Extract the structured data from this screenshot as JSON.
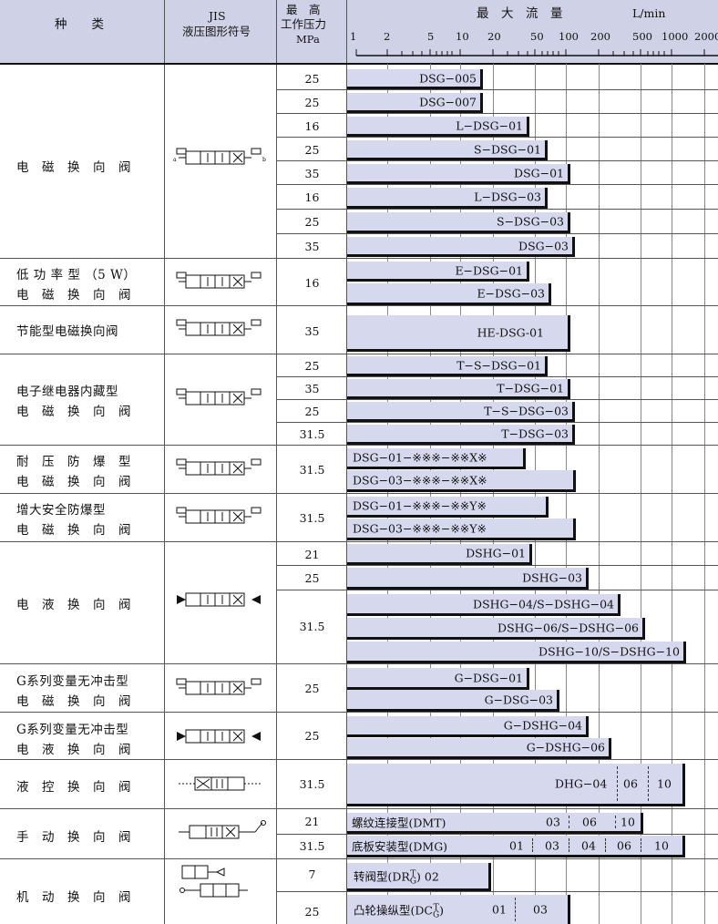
{
  "header": {
    "col_type": "种　　类",
    "col_jis_1": "JIS",
    "col_jis_2": "液压图形符号",
    "col_press_1": "最　高",
    "col_press_2": "工作压力",
    "col_press_3": "MPa",
    "col_flow": "最　大　流　量",
    "flow_unit": "L/min",
    "scale_ticks": [
      "1",
      "2",
      "5",
      "10",
      "20",
      "50",
      "100",
      "200",
      "500",
      "1000",
      "2000"
    ]
  },
  "categories": [
    {
      "name": "电　磁　换　向　阀"
    },
    {
      "name_1": "低 功 率 型 （5 W）",
      "name_2": "电　磁　换　向　阀"
    },
    {
      "name": "节能型电磁换向阀"
    },
    {
      "name_1": "电子继电器内藏型",
      "name_2": "电　磁　换　向　阀"
    },
    {
      "name_1": "耐　压　防　爆　型",
      "name_2": "电　磁　换　向　阀"
    },
    {
      "name_1": "增大安全防爆型",
      "name_2": "电　磁　换　向　阀"
    },
    {
      "name": "电　液　换　向　阀"
    },
    {
      "name_1": "G系列变量无冲击型",
      "name_2": "电　磁　换　向　阀"
    },
    {
      "name_1": "G系列变量无冲击型",
      "name_2": "电　液　换　向　阀"
    },
    {
      "name": "液　控　换　向　阀"
    },
    {
      "name": "手　动　换　向　阀"
    },
    {
      "name": "机　动　换　向　阀"
    }
  ],
  "rows": [
    {
      "p": "25",
      "label": "DSG−005"
    },
    {
      "p": "25",
      "label": "DSG−007"
    },
    {
      "p": "16",
      "label": "L−DSG−01"
    },
    {
      "p": "25",
      "label": "S−DSG−01"
    },
    {
      "p": "35",
      "label": "DSG−01"
    },
    {
      "p": "16",
      "label": "L−DSG−03"
    },
    {
      "p": "25",
      "label": "S−DSG−03"
    },
    {
      "p": "35",
      "label": "DSG−03"
    },
    {
      "p": "16",
      "label": "E−DSG−01"
    },
    {
      "p": "",
      "label": "E−DSG−03"
    },
    {
      "p": "35",
      "label": "HE-DSG-01"
    },
    {
      "p": "25",
      "label": "T−S−DSG−01"
    },
    {
      "p": "35",
      "label": "T−DSG−01"
    },
    {
      "p": "25",
      "label": "T−S−DSG−03"
    },
    {
      "p": "31.5",
      "label": "T−DSG−03"
    },
    {
      "p": "31.5",
      "label": "DSG−01−※※※−※※X※"
    },
    {
      "p": "",
      "label": "DSG−03−※※※−※※X※"
    },
    {
      "p": "31.5",
      "label": "DSG−01−※※※−※※Y※"
    },
    {
      "p": "",
      "label": "DSG−03−※※※−※※Y※"
    },
    {
      "p": "21",
      "label": "DSHG−01"
    },
    {
      "p": "25",
      "label": "DSHG−03"
    },
    {
      "p": "31.5",
      "label": "DSHG−04/S−DSHG−04"
    },
    {
      "p": "",
      "label": "DSHG−06/S−DSHG−06"
    },
    {
      "p": "",
      "label": "DSHG−10/S−DSHG−10"
    },
    {
      "p": "25",
      "label": "G−DSG−01"
    },
    {
      "p": "",
      "label": "G−DSG−03"
    },
    {
      "p": "25",
      "label": "G−DSHG−04"
    },
    {
      "p": "",
      "label": "G−DSHG−06"
    },
    {
      "p": "31.5",
      "label": "DHG−04",
      "seg1": "06",
      "seg2": "10"
    },
    {
      "p": "21",
      "label": "螺纹连接型(DMT)",
      "seg1": "03",
      "seg2": "06",
      "seg3": "10"
    },
    {
      "p": "31.5",
      "label": "底板安装型(DMG)",
      "seg1": "01",
      "seg2": "03",
      "seg3": "04",
      "seg4": "06",
      "seg5": "10"
    },
    {
      "p": "7",
      "label": "转阀型(DR",
      "sup": "T",
      "sub": "G",
      "tail": ") 02"
    },
    {
      "p": "25",
      "label": "凸轮操纵型(DC",
      "sup": "T",
      "sub": "G",
      "tail": ")",
      "seg1": "01",
      "seg2": "03"
    }
  ]
}
